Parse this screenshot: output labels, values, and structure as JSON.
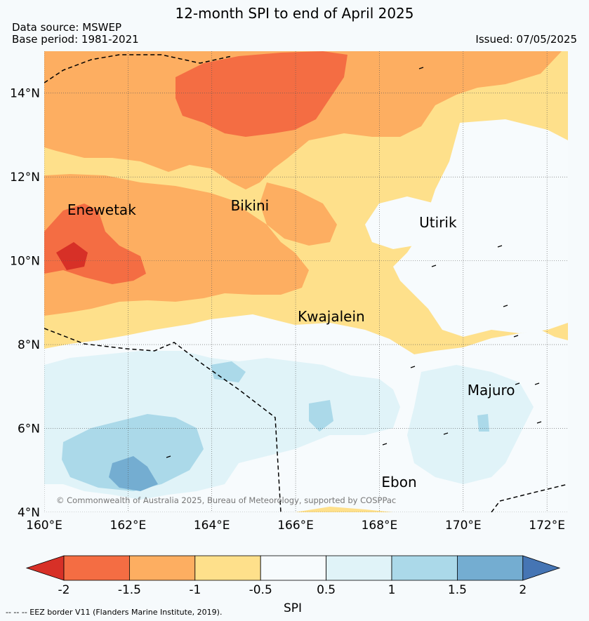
{
  "header": {
    "title": "12-month SPI to end of April 2025",
    "data_source": "Data source: MSWEP",
    "base_period": "Base period: 1981-2021",
    "issued": "Issued: 07/05/2025"
  },
  "map": {
    "lon_range": [
      160,
      172.5
    ],
    "lat_range": [
      4,
      15
    ],
    "x_ticks": [
      {
        "lon": 160,
        "label": "160°E"
      },
      {
        "lon": 162,
        "label": "162°E"
      },
      {
        "lon": 164,
        "label": "164°E"
      },
      {
        "lon": 166,
        "label": "166°E"
      },
      {
        "lon": 168,
        "label": "168°E"
      },
      {
        "lon": 170,
        "label": "170°E"
      },
      {
        "lon": 172,
        "label": "172°E"
      }
    ],
    "y_ticks": [
      {
        "lat": 4,
        "label": "4°N"
      },
      {
        "lat": 6,
        "label": "6°N"
      },
      {
        "lat": 8,
        "label": "8°N"
      },
      {
        "lat": 10,
        "label": "10°N"
      },
      {
        "lat": 12,
        "label": "12°N"
      },
      {
        "lat": 14,
        "label": "14°N"
      }
    ],
    "place_labels": [
      {
        "name": "Enewetak",
        "lon": 160.55,
        "lat": 11.1
      },
      {
        "name": "Bikini",
        "lon": 164.45,
        "lat": 11.2
      },
      {
        "name": "Utirik",
        "lon": 168.95,
        "lat": 10.8
      },
      {
        "name": "Kwajalein",
        "lon": 166.05,
        "lat": 8.55
      },
      {
        "name": "Majuro",
        "lon": 170.1,
        "lat": 6.8
      },
      {
        "name": "Ebon",
        "lon": 168.05,
        "lat": 4.6
      }
    ],
    "copyright": "© Commonwealth of Australia 2025, Bureau of Meteorology, supported by COSPPac",
    "grid": true
  },
  "colorbar": {
    "label": "SPI",
    "ticks": [
      "-2",
      "-1.5",
      "-1",
      "-0.5",
      "0.5",
      "1",
      "1.5",
      "2"
    ],
    "colors": {
      "extend_low": "#d73027",
      "c_m2_m15": "#f46d43",
      "c_m15_m1": "#fdae61",
      "c_m1_m05": "#fee08b",
      "c_m05_05": "#f7fbfd",
      "c_05_1": "#e0f3f8",
      "c_1_15": "#abd9e9",
      "c_15_2": "#74add1",
      "extend_high": "#4575b4"
    }
  },
  "footnote": "--  --  -- EEZ border V11 (Flanders Marine Institute, 2019)."
}
